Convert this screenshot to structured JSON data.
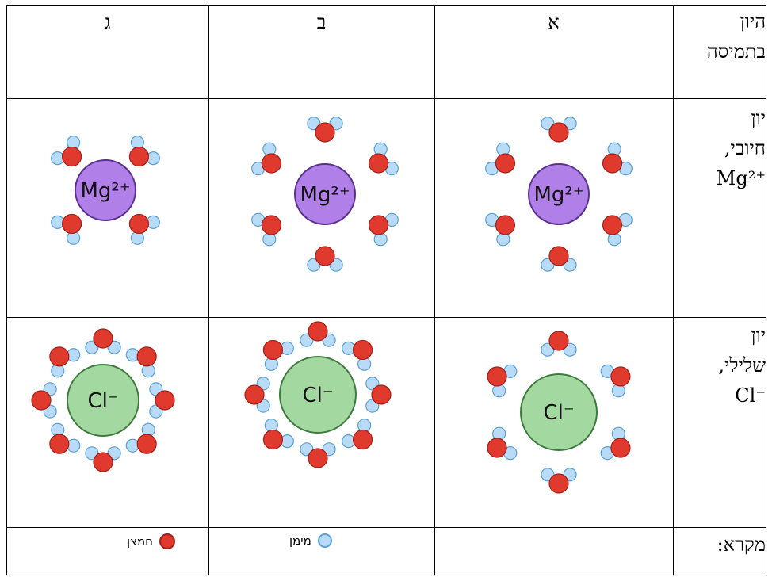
{
  "header": {
    "col_gimel": "ג",
    "col_bet": "ב",
    "col_alef": "א",
    "row_label_line1": "היון",
    "row_label_line2": "בתמיסה"
  },
  "rows": {
    "positive": {
      "line1": "יון",
      "line2": "חיובי,",
      "line3": "Mg²⁺"
    },
    "negative": {
      "line1": "יון",
      "line2": "שלילי,",
      "line3": "Cl⁻"
    }
  },
  "ions": {
    "mg": "Mg²⁺",
    "cl": "Cl⁻"
  },
  "legend": {
    "title": "מקרא:",
    "hydrogen": "מימן",
    "oxygen": "חמצן"
  },
  "colors": {
    "mg": "#b07fe8",
    "mg_stroke": "#5b2f8f",
    "cl": "#a3d9a0",
    "cl_stroke": "#3e7b3e",
    "oxygen": "#e03a2f",
    "hydrogen": "#b8dcf7",
    "hydrogen_stroke": "#5b9fd6"
  }
}
